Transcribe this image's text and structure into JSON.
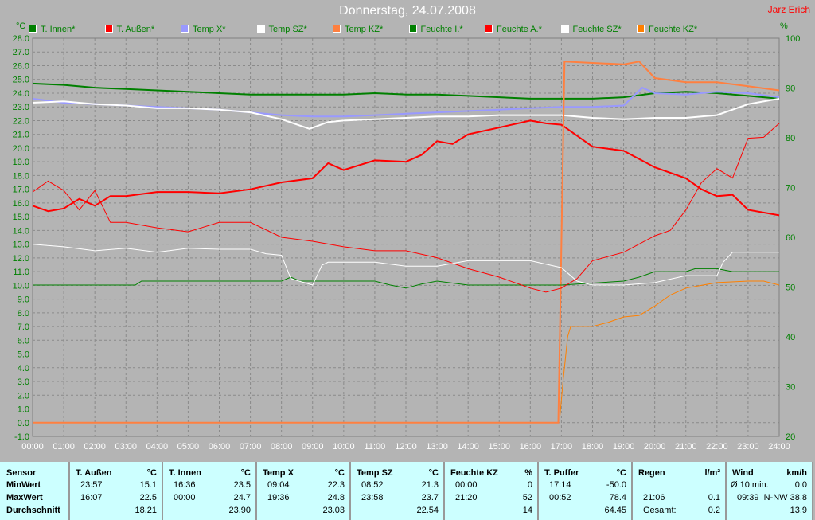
{
  "title": "Donnerstag, 24.07.2008",
  "author": "Jarz Erich",
  "chart_data": {
    "type": "line",
    "title": "Donnerstag, 24.07.2008",
    "xlabel": "",
    "ylabel_left": "°C",
    "ylabel_right": "%",
    "xlim": [
      0,
      24
    ],
    "ylim_left": [
      -1,
      28
    ],
    "ylim_right": [
      20,
      100
    ],
    "grid": true,
    "legend_placement": "top",
    "x_ticks": [
      "00:00",
      "01:00",
      "02:00",
      "03:00",
      "04:00",
      "05:00",
      "06:00",
      "07:00",
      "08:00",
      "09:00",
      "10:00",
      "11:00",
      "12:00",
      "13:00",
      "14:00",
      "15:00",
      "16:00",
      "17:00",
      "18:00",
      "19:00",
      "20:00",
      "21:00",
      "22:00",
      "23:00",
      "24:00"
    ],
    "y_ticks_left": [
      "-1.0",
      "0.0",
      "1.0",
      "2.0",
      "3.0",
      "4.0",
      "5.0",
      "6.0",
      "7.0",
      "8.0",
      "9.0",
      "10.0",
      "11.0",
      "12.0",
      "13.0",
      "14.0",
      "15.0",
      "16.0",
      "17.0",
      "18.0",
      "19.0",
      "20.0",
      "21.0",
      "22.0",
      "23.0",
      "24.0",
      "25.0",
      "26.0",
      "27.0",
      "28.0"
    ],
    "y_ticks_right": [
      "20",
      "30",
      "40",
      "50",
      "60",
      "70",
      "80",
      "90",
      "100"
    ],
    "series": [
      {
        "name": "T. Innen*",
        "color": "#008000",
        "axis": "left",
        "width": 2,
        "points": [
          [
            0,
            24.7
          ],
          [
            1,
            24.6
          ],
          [
            2,
            24.4
          ],
          [
            3,
            24.3
          ],
          [
            4,
            24.2
          ],
          [
            5,
            24.1
          ],
          [
            6,
            24.0
          ],
          [
            7,
            23.9
          ],
          [
            8,
            23.9
          ],
          [
            9,
            23.9
          ],
          [
            10,
            23.9
          ],
          [
            11,
            24.0
          ],
          [
            12,
            23.9
          ],
          [
            13,
            23.9
          ],
          [
            14,
            23.8
          ],
          [
            15,
            23.7
          ],
          [
            16,
            23.6
          ],
          [
            17,
            23.6
          ],
          [
            18,
            23.6
          ],
          [
            19,
            23.7
          ],
          [
            20,
            24.0
          ],
          [
            21,
            24.1
          ],
          [
            22,
            24.0
          ],
          [
            23,
            23.8
          ],
          [
            24,
            23.6
          ]
        ]
      },
      {
        "name": "T. Außen*",
        "color": "#ff0000",
        "axis": "left",
        "width": 2,
        "points": [
          [
            0,
            15.8
          ],
          [
            0.5,
            15.4
          ],
          [
            1,
            15.6
          ],
          [
            1.5,
            16.3
          ],
          [
            2,
            15.8
          ],
          [
            2.5,
            16.5
          ],
          [
            3,
            16.5
          ],
          [
            4,
            16.8
          ],
          [
            5,
            16.8
          ],
          [
            6,
            16.7
          ],
          [
            7,
            17.0
          ],
          [
            8,
            17.5
          ],
          [
            9,
            17.8
          ],
          [
            9.5,
            18.9
          ],
          [
            10,
            18.4
          ],
          [
            11,
            19.1
          ],
          [
            12,
            19.0
          ],
          [
            12.5,
            19.5
          ],
          [
            13,
            20.5
          ],
          [
            13.5,
            20.3
          ],
          [
            14,
            21.0
          ],
          [
            15,
            21.5
          ],
          [
            16,
            22.0
          ],
          [
            16.5,
            21.8
          ],
          [
            17,
            21.7
          ],
          [
            18,
            20.1
          ],
          [
            19,
            19.8
          ],
          [
            20,
            18.6
          ],
          [
            21,
            17.8
          ],
          [
            21.5,
            17.0
          ],
          [
            22,
            16.5
          ],
          [
            22.5,
            16.6
          ],
          [
            23,
            15.5
          ],
          [
            24,
            15.1
          ]
        ]
      },
      {
        "name": "Temp X*",
        "color": "#9999ff",
        "axis": "left",
        "width": 2,
        "points": [
          [
            0,
            23.6
          ],
          [
            1,
            23.3
          ],
          [
            2,
            23.2
          ],
          [
            3,
            23.1
          ],
          [
            4,
            23.0
          ],
          [
            5,
            22.9
          ],
          [
            6,
            22.8
          ],
          [
            7,
            22.6
          ],
          [
            8,
            22.4
          ],
          [
            9,
            22.3
          ],
          [
            10,
            22.3
          ],
          [
            11,
            22.4
          ],
          [
            12,
            22.5
          ],
          [
            13,
            22.6
          ],
          [
            14,
            22.7
          ],
          [
            15,
            22.8
          ],
          [
            16,
            22.9
          ],
          [
            17,
            23.0
          ],
          [
            18,
            23.0
          ],
          [
            19,
            23.1
          ],
          [
            19.6,
            24.4
          ],
          [
            20,
            24.0
          ],
          [
            21,
            23.9
          ],
          [
            22,
            24.1
          ],
          [
            23,
            24.0
          ],
          [
            24,
            23.7
          ]
        ]
      },
      {
        "name": "Temp SZ*",
        "color": "#ffffff",
        "axis": "left",
        "width": 2,
        "points": [
          [
            0,
            23.3
          ],
          [
            1,
            23.4
          ],
          [
            2,
            23.2
          ],
          [
            3,
            23.1
          ],
          [
            4,
            22.9
          ],
          [
            5,
            22.9
          ],
          [
            6,
            22.8
          ],
          [
            7,
            22.6
          ],
          [
            8,
            22.1
          ],
          [
            8.9,
            21.4
          ],
          [
            9.5,
            21.9
          ],
          [
            10,
            22.0
          ],
          [
            11,
            22.1
          ],
          [
            12,
            22.2
          ],
          [
            13,
            22.3
          ],
          [
            14,
            22.3
          ],
          [
            15,
            22.4
          ],
          [
            16,
            22.4
          ],
          [
            17,
            22.4
          ],
          [
            18,
            22.2
          ],
          [
            19,
            22.1
          ],
          [
            20,
            22.2
          ],
          [
            21,
            22.2
          ],
          [
            22,
            22.4
          ],
          [
            23,
            23.2
          ],
          [
            24,
            23.6
          ]
        ]
      },
      {
        "name": "Temp KZ*",
        "color": "#ff8040",
        "axis": "left",
        "width": 2,
        "points": [
          [
            0,
            0
          ],
          [
            16.9,
            0
          ],
          [
            17.1,
            26.3
          ],
          [
            18,
            26.2
          ],
          [
            19,
            26.1
          ],
          [
            19.5,
            26.3
          ],
          [
            20,
            25.1
          ],
          [
            21,
            24.8
          ],
          [
            22,
            24.8
          ],
          [
            23,
            24.5
          ],
          [
            24,
            24.2
          ]
        ]
      },
      {
        "name": "Feuchte I.*",
        "color": "#008000",
        "axis": "right",
        "width": 1,
        "points": [
          [
            0,
            50.4
          ],
          [
            3.3,
            50.4
          ],
          [
            3.5,
            51.2
          ],
          [
            8,
            51.2
          ],
          [
            8.3,
            52.0
          ],
          [
            8.6,
            51.2
          ],
          [
            11,
            51.2
          ],
          [
            11.5,
            50.4
          ],
          [
            12,
            49.8
          ],
          [
            12.5,
            50.6
          ],
          [
            13,
            51.2
          ],
          [
            14,
            50.4
          ],
          [
            17,
            50.4
          ],
          [
            19,
            51.2
          ],
          [
            19.5,
            52.0
          ],
          [
            20,
            53.1
          ],
          [
            21,
            53.1
          ],
          [
            21.3,
            53.7
          ],
          [
            22,
            53.7
          ],
          [
            22.5,
            53.1
          ],
          [
            24,
            53.1
          ]
        ]
      },
      {
        "name": "Feuchte A.*",
        "color": "#ff0000",
        "axis": "right",
        "width": 1,
        "points": [
          [
            0,
            69.1
          ],
          [
            0.5,
            71.3
          ],
          [
            1,
            69.4
          ],
          [
            1.5,
            65.5
          ],
          [
            2,
            69.4
          ],
          [
            2.5,
            63.0
          ],
          [
            3,
            63.0
          ],
          [
            4,
            61.9
          ],
          [
            5,
            61.1
          ],
          [
            6,
            63.0
          ],
          [
            7,
            63.0
          ],
          [
            8,
            60.0
          ],
          [
            9,
            59.2
          ],
          [
            10,
            58.1
          ],
          [
            11,
            57.3
          ],
          [
            12,
            57.3
          ],
          [
            13,
            55.9
          ],
          [
            14,
            53.7
          ],
          [
            15,
            52.0
          ],
          [
            16,
            49.8
          ],
          [
            16.5,
            49.0
          ],
          [
            17,
            49.8
          ],
          [
            17.5,
            51.7
          ],
          [
            18,
            55.3
          ],
          [
            19,
            57.0
          ],
          [
            20,
            60.3
          ],
          [
            20.5,
            61.4
          ],
          [
            21,
            65.5
          ],
          [
            21.5,
            71.0
          ],
          [
            22,
            73.8
          ],
          [
            22.5,
            71.9
          ],
          [
            23,
            79.9
          ],
          [
            23.5,
            80.1
          ],
          [
            24,
            82.9
          ]
        ]
      },
      {
        "name": "Feuchte SZ*",
        "color": "#ffffff",
        "axis": "right",
        "width": 1,
        "points": [
          [
            0,
            58.6
          ],
          [
            1,
            58.1
          ],
          [
            2,
            57.3
          ],
          [
            3,
            57.8
          ],
          [
            4,
            57.0
          ],
          [
            5,
            57.8
          ],
          [
            6,
            57.6
          ],
          [
            7,
            57.6
          ],
          [
            7.5,
            56.7
          ],
          [
            8,
            56.4
          ],
          [
            8.3,
            51.7
          ],
          [
            9,
            50.4
          ],
          [
            9.3,
            54.4
          ],
          [
            9.5,
            55.0
          ],
          [
            11,
            55.0
          ],
          [
            12,
            54.2
          ],
          [
            13,
            54.2
          ],
          [
            14,
            55.3
          ],
          [
            16,
            55.3
          ],
          [
            17,
            53.9
          ],
          [
            17.5,
            51.2
          ],
          [
            18,
            50.4
          ],
          [
            19,
            50.4
          ],
          [
            20,
            50.9
          ],
          [
            21,
            52.3
          ],
          [
            22,
            52.3
          ],
          [
            22.2,
            55.0
          ],
          [
            22.5,
            57.0
          ],
          [
            24,
            57.0
          ]
        ]
      },
      {
        "name": "Feuchte KZ*",
        "color": "#ff8000",
        "axis": "right",
        "width": 1,
        "points": [
          [
            16.95,
            24
          ],
          [
            17.05,
            31
          ],
          [
            17.2,
            40
          ],
          [
            17.3,
            42.1
          ],
          [
            18,
            42.1
          ],
          [
            18.5,
            42.9
          ],
          [
            19,
            44.0
          ],
          [
            19.5,
            44.3
          ],
          [
            20,
            46.2
          ],
          [
            20.5,
            48.4
          ],
          [
            21,
            49.8
          ],
          [
            22,
            50.9
          ],
          [
            23,
            51.2
          ],
          [
            23.5,
            51.2
          ],
          [
            24,
            50.4
          ]
        ]
      }
    ]
  },
  "table": {
    "row_labels": [
      "Sensor",
      "MinWert",
      "MaxWert",
      "Durchschnitt"
    ],
    "columns": [
      {
        "header": "T. Außen",
        "unit": "°C",
        "rows": [
          [
            "23:57",
            "15.1"
          ],
          [
            "16:07",
            "22.5"
          ],
          [
            "",
            "18.21"
          ]
        ]
      },
      {
        "header": "T. Innen",
        "unit": "°C",
        "rows": [
          [
            "16:36",
            "23.5"
          ],
          [
            "00:00",
            "24.7"
          ],
          [
            "",
            "23.90"
          ]
        ]
      },
      {
        "header": "Temp X",
        "unit": "°C",
        "rows": [
          [
            "09:04",
            "22.3"
          ],
          [
            "19:36",
            "24.8"
          ],
          [
            "",
            "23.03"
          ]
        ]
      },
      {
        "header": "Temp SZ",
        "unit": "°C",
        "rows": [
          [
            "08:52",
            "21.3"
          ],
          [
            "23:58",
            "23.7"
          ],
          [
            "",
            "22.54"
          ]
        ]
      },
      {
        "header": "Feuchte KZ",
        "unit": "%",
        "rows": [
          [
            "00:00",
            "0"
          ],
          [
            "21:20",
            "52"
          ],
          [
            "",
            "14"
          ]
        ]
      },
      {
        "header": "T. Puffer",
        "unit": "°C",
        "rows": [
          [
            "17:14",
            "-50.0"
          ],
          [
            "00:52",
            "78.4"
          ],
          [
            "",
            "64.45"
          ]
        ]
      },
      {
        "header": "Regen",
        "unit": "l/m²",
        "rows": [
          [
            "",
            ""
          ],
          [
            "21:06",
            "0.1"
          ],
          [
            "Gesamt:",
            "0.2"
          ]
        ]
      },
      {
        "header": "Wind",
        "unit": "km/h",
        "rows": [
          [
            "Ø 10 min.",
            "0.0"
          ],
          [
            "09:39",
            "N-NW 38.8"
          ],
          [
            "",
            "13.9"
          ]
        ]
      }
    ]
  }
}
